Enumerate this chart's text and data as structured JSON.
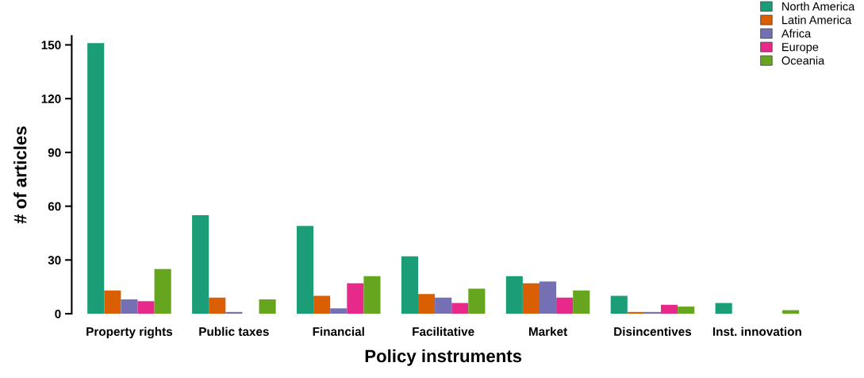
{
  "chart_data": {
    "type": "bar",
    "xlabel": "Policy instruments",
    "ylabel": "# of articles",
    "categories": [
      "Property rights",
      "Public taxes",
      "Financial",
      "Facilitative",
      "Market",
      "Disincentives",
      "Inst. innovation"
    ],
    "series": [
      {
        "name": "North America",
        "color": "#1b9e77",
        "values": [
          151,
          55,
          49,
          32,
          21,
          10,
          6
        ]
      },
      {
        "name": "Latin America",
        "color": "#d95f02",
        "values": [
          13,
          9,
          10,
          11,
          17,
          1,
          null
        ]
      },
      {
        "name": "Africa",
        "color": "#7570b3",
        "values": [
          8,
          1,
          3,
          9,
          18,
          1,
          null
        ]
      },
      {
        "name": "Europe",
        "color": "#e7298a",
        "values": [
          7,
          null,
          17,
          6,
          9,
          5,
          null
        ]
      },
      {
        "name": "Oceania",
        "color": "#66a61e",
        "values": [
          25,
          8,
          21,
          14,
          13,
          4,
          2
        ]
      }
    ],
    "ylim": [
      0,
      155
    ],
    "yticks": [
      0,
      30,
      60,
      90,
      120,
      150
    ],
    "grid": false,
    "legend": "top right"
  }
}
